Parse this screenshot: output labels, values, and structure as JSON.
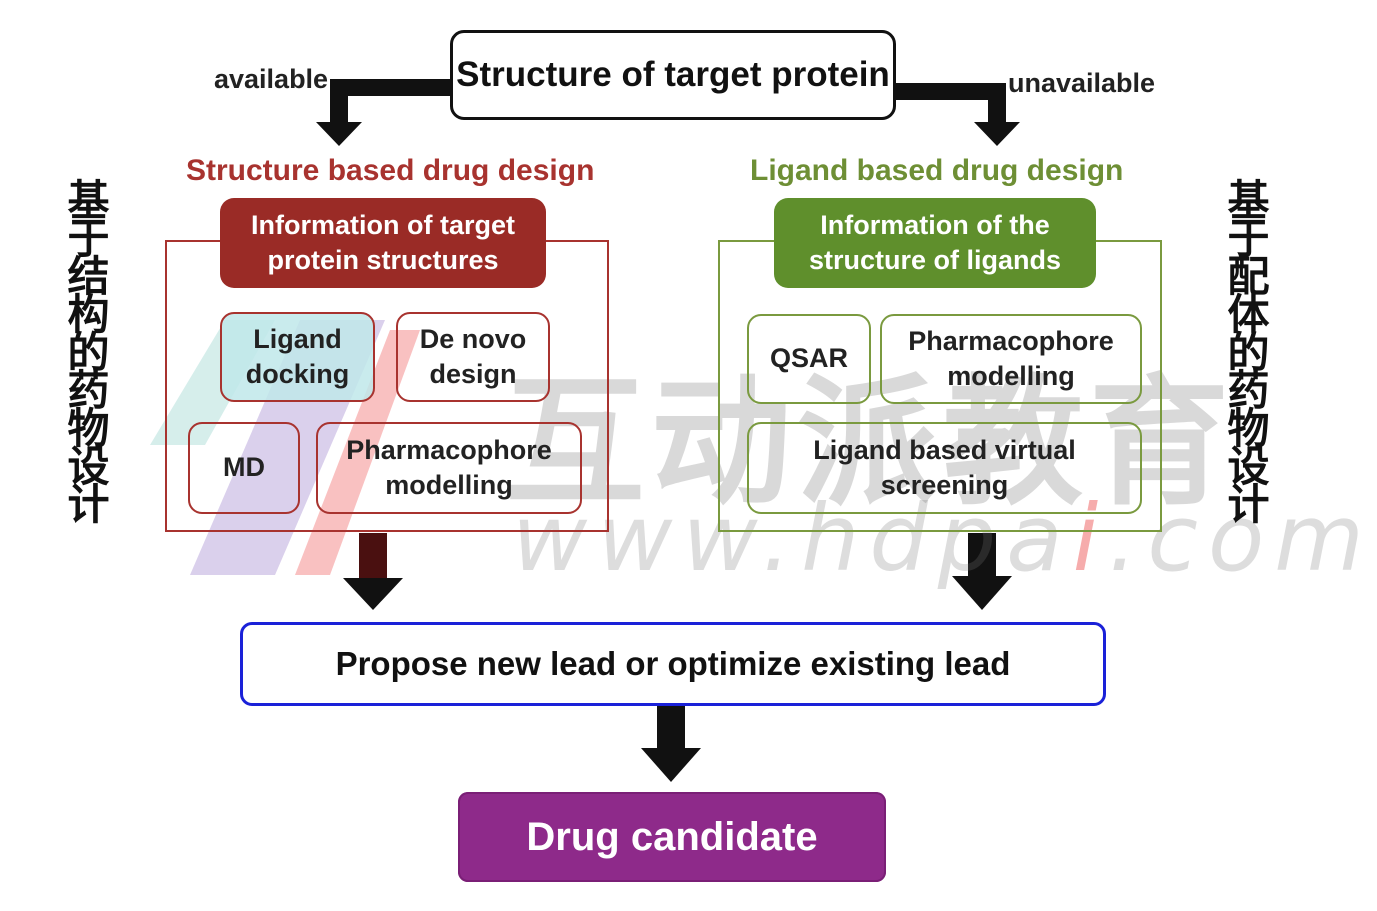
{
  "top_node": {
    "label": "Structure of target protein"
  },
  "branches": {
    "left": "available",
    "right": "unavailable"
  },
  "left_section": {
    "title": "Structure based drug design",
    "title_color": "#a8332f",
    "frame_color": "#a8332f",
    "header": [
      "Information of target",
      "protein structures"
    ],
    "header_color": "#9a2b26",
    "items": [
      {
        "label": [
          "Ligand",
          "docking"
        ],
        "color": "#a8332f",
        "fill": "#bfe8ea"
      },
      {
        "label": [
          "De novo",
          "design"
        ],
        "color": "#a8332f"
      },
      {
        "label": [
          "MD"
        ],
        "color": "#a8332f"
      },
      {
        "label": [
          "Pharmacophore",
          "modelling"
        ],
        "color": "#a8332f"
      }
    ],
    "side_text": "基于结构的药物设计"
  },
  "right_section": {
    "title": "Ligand based drug design",
    "title_color": "#6e8f35",
    "frame_color": "#7a9a3f",
    "header": [
      "Information of the",
      "structure of ligands"
    ],
    "header_color": "#5f8f2c",
    "items": [
      {
        "label": [
          "QSAR"
        ],
        "color": "#7a9a3f"
      },
      {
        "label": [
          "Pharmacophore",
          "modelling"
        ],
        "color": "#7a9a3f"
      },
      {
        "label": [
          "Ligand based virtual",
          "screening"
        ],
        "color": "#7a9a3f"
      }
    ],
    "side_text": "基于配体的药物设计"
  },
  "lead_node": {
    "label": "Propose new lead or optimize existing lead",
    "border_color": "#1a21d8"
  },
  "final_node": {
    "label": "Drug candidate",
    "fill": "#8e2a8a"
  },
  "watermark": {
    "brand": "互动派教育",
    "url_parts": [
      "www.hdpa",
      "i",
      ".com"
    ]
  }
}
